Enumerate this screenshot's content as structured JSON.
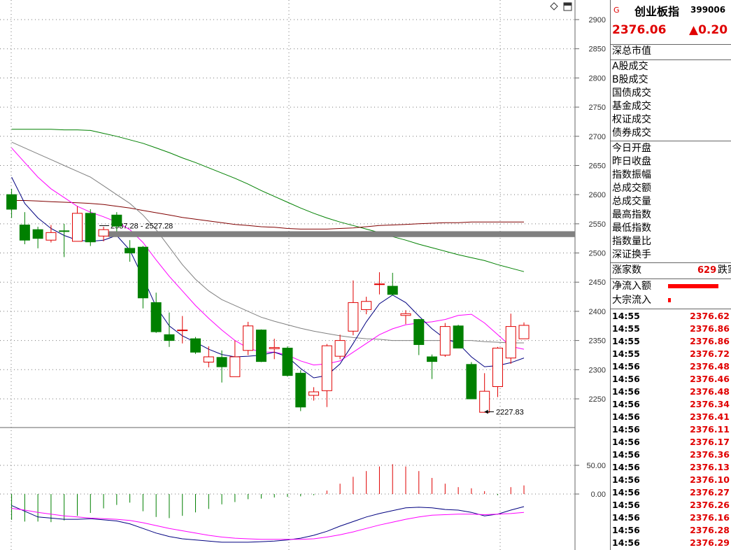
{
  "header": {
    "market_flag": "G",
    "index_name": "创业板指",
    "index_code": "399006",
    "price": "2376.06",
    "change": "▲0.20"
  },
  "panel": {
    "labels_group1": [
      "深总市值"
    ],
    "labels_group2": [
      "A股成交",
      "B股成交",
      "国债成交",
      "基金成交",
      "权证成交",
      "债券成交"
    ],
    "labels_group3": [
      "今日开盘",
      "昨日收盘",
      "指数振幅",
      "总成交额",
      "总成交量",
      "最高指数",
      "最低指数",
      "指数量比",
      "深证换手"
    ],
    "up_count_label": "涨家数",
    "up_count_value": "629",
    "down_count_label": "跌家",
    "net_inflow_label": "净流入额",
    "block_inflow_label": "大宗流入",
    "net_inflow_fraction": 0.9,
    "block_inflow_fraction": 0.05
  },
  "ticks": [
    {
      "time": "14:55",
      "price": "2376.62"
    },
    {
      "time": "14:55",
      "price": "2376.86"
    },
    {
      "time": "14:55",
      "price": "2376.86"
    },
    {
      "time": "14:55",
      "price": "2376.72"
    },
    {
      "time": "14:56",
      "price": "2376.48"
    },
    {
      "time": "14:56",
      "price": "2376.46"
    },
    {
      "time": "14:56",
      "price": "2376.48"
    },
    {
      "time": "14:56",
      "price": "2376.34"
    },
    {
      "time": "14:56",
      "price": "2376.41"
    },
    {
      "time": "14:56",
      "price": "2376.11"
    },
    {
      "time": "14:56",
      "price": "2376.17"
    },
    {
      "time": "14:56",
      "price": "2376.36"
    },
    {
      "time": "14:56",
      "price": "2376.13"
    },
    {
      "time": "14:56",
      "price": "2376.10"
    },
    {
      "time": "14:56",
      "price": "2376.27"
    },
    {
      "time": "14:56",
      "price": "2376.26"
    },
    {
      "time": "14:56",
      "price": "2376.16"
    },
    {
      "time": "14:56",
      "price": "2376.28"
    },
    {
      "time": "14:56",
      "price": "2376.29"
    }
  ],
  "colors": {
    "up": "#e00000",
    "down": "#008000",
    "ma_short": "#000080",
    "ma_mid": "#ff00ff",
    "ma_long": "#808080",
    "ma_longer": "#800000",
    "ma_longest": "#008000",
    "band": "#808080"
  },
  "chart_data": {
    "type": "candlestick",
    "price_axis": {
      "min": 2200,
      "max": 2910,
      "ticks": [
        2250,
        2300,
        2350,
        2400,
        2450,
        2500,
        2550,
        2600,
        2650,
        2700,
        2750,
        2800,
        2850,
        2900
      ]
    },
    "macd_axis": {
      "ticks": [
        "50.00",
        "0.00"
      ]
    },
    "candles": [
      {
        "o": 2600,
        "c": 2575,
        "h": 2610,
        "l": 2560
      },
      {
        "o": 2548,
        "c": 2522,
        "h": 2570,
        "l": 2515
      },
      {
        "o": 2540,
        "c": 2525,
        "h": 2545,
        "l": 2508
      },
      {
        "o": 2522,
        "c": 2535,
        "h": 2548,
        "l": 2518
      },
      {
        "o": 2538,
        "c": 2537,
        "h": 2550,
        "l": 2493
      },
      {
        "o": 2520,
        "c": 2568,
        "h": 2580,
        "l": 2520
      },
      {
        "o": 2568,
        "c": 2519,
        "h": 2575,
        "l": 2512
      },
      {
        "o": 2529,
        "c": 2540,
        "h": 2545,
        "l": 2520
      },
      {
        "o": 2565,
        "c": 2546,
        "h": 2570,
        "l": 2537
      },
      {
        "o": 2508,
        "c": 2500,
        "h": 2522,
        "l": 2485
      },
      {
        "o": 2510,
        "c": 2423,
        "h": 2512,
        "l": 2405
      },
      {
        "o": 2415,
        "c": 2365,
        "h": 2432,
        "l": 2363
      },
      {
        "o": 2360,
        "c": 2350,
        "h": 2398,
        "l": 2339
      },
      {
        "o": 2368,
        "c": 2368,
        "h": 2392,
        "l": 2345
      },
      {
        "o": 2353,
        "c": 2330,
        "h": 2356,
        "l": 2327
      },
      {
        "o": 2313,
        "c": 2322,
        "h": 2340,
        "l": 2304
      },
      {
        "o": 2321,
        "c": 2305,
        "h": 2333,
        "l": 2278
      },
      {
        "o": 2288,
        "c": 2322,
        "h": 2350,
        "l": 2288
      },
      {
        "o": 2333,
        "c": 2375,
        "h": 2382,
        "l": 2325
      },
      {
        "o": 2368,
        "c": 2314,
        "h": 2369,
        "l": 2313
      },
      {
        "o": 2336,
        "c": 2338,
        "h": 2353,
        "l": 2318
      },
      {
        "o": 2337,
        "c": 2290,
        "h": 2340,
        "l": 2288
      },
      {
        "o": 2294,
        "c": 2236,
        "h": 2299,
        "l": 2229
      },
      {
        "o": 2256,
        "c": 2262,
        "h": 2270,
        "l": 2247
      },
      {
        "o": 2264,
        "c": 2341,
        "h": 2344,
        "l": 2236
      },
      {
        "o": 2323,
        "c": 2350,
        "h": 2360,
        "l": 2318
      },
      {
        "o": 2366,
        "c": 2415,
        "h": 2453,
        "l": 2359
      },
      {
        "o": 2403,
        "c": 2417,
        "h": 2425,
        "l": 2395
      },
      {
        "o": 2446,
        "c": 2447,
        "h": 2467,
        "l": 2429
      },
      {
        "o": 2443,
        "c": 2429,
        "h": 2466,
        "l": 2427
      },
      {
        "o": 2393,
        "c": 2396,
        "h": 2402,
        "l": 2378
      },
      {
        "o": 2386,
        "c": 2343,
        "h": 2387,
        "l": 2325
      },
      {
        "o": 2322,
        "c": 2314,
        "h": 2326,
        "l": 2284
      },
      {
        "o": 2325,
        "c": 2374,
        "h": 2380,
        "l": 2322
      },
      {
        "o": 2375,
        "c": 2337,
        "h": 2377,
        "l": 2337
      },
      {
        "o": 2309,
        "c": 2250,
        "h": 2313,
        "l": 2250
      },
      {
        "o": 2227,
        "c": 2263,
        "h": 2294,
        "l": 2227
      },
      {
        "o": 2271,
        "c": 2337,
        "h": 2339,
        "l": 2253
      },
      {
        "o": 2320,
        "c": 2374,
        "h": 2396,
        "l": 2310
      },
      {
        "o": 2353,
        "c": 2376,
        "h": 2381,
        "l": 2353
      }
    ],
    "ma_short": [
      2630,
      2585,
      2560,
      2542,
      2530,
      2522,
      2520,
      2522,
      2530,
      2505,
      2458,
      2408,
      2375,
      2358,
      2347,
      2335,
      2326,
      2322,
      2323,
      2325,
      2330,
      2322,
      2302,
      2286,
      2290,
      2310,
      2345,
      2382,
      2413,
      2428,
      2415,
      2392,
      2370,
      2353,
      2345,
      2322,
      2305,
      2307,
      2312,
      2320
    ],
    "ma_mid": [
      2680,
      2655,
      2630,
      2610,
      2595,
      2580,
      2570,
      2562,
      2553,
      2540,
      2518,
      2488,
      2460,
      2435,
      2410,
      2388,
      2368,
      2350,
      2337,
      2330,
      2330,
      2325,
      2315,
      2308,
      2310,
      2315,
      2330,
      2345,
      2360,
      2370,
      2377,
      2380,
      2382,
      2386,
      2393,
      2395,
      2380,
      2360,
      2340,
      2335
    ],
    "ma_long": [
      2690,
      2680,
      2670,
      2660,
      2650,
      2640,
      2630,
      2615,
      2600,
      2585,
      2565,
      2540,
      2510,
      2480,
      2455,
      2435,
      2420,
      2410,
      2400,
      2390,
      2383,
      2377,
      2371,
      2366,
      2362,
      2358,
      2355,
      2353,
      2352,
      2350,
      2350,
      2350,
      2350,
      2350,
      2350,
      2350,
      2348,
      2347,
      2346,
      2346
    ],
    "ma_longer": [
      2590,
      2590,
      2589,
      2588,
      2587,
      2586,
      2585,
      2583,
      2580,
      2577,
      2573,
      2569,
      2565,
      2561,
      2558,
      2555,
      2552,
      2549,
      2547,
      2545,
      2544,
      2542,
      2541,
      2541,
      2541,
      2542,
      2543,
      2545,
      2547,
      2548,
      2549,
      2550,
      2551,
      2552,
      2552,
      2553,
      2553,
      2553,
      2553,
      2553
    ],
    "ma_longest": [
      2712,
      2712,
      2712,
      2712,
      2711,
      2711,
      2710,
      2705,
      2700,
      2694,
      2688,
      2680,
      2672,
      2663,
      2655,
      2646,
      2637,
      2628,
      2618,
      2607,
      2597,
      2587,
      2577,
      2568,
      2560,
      2553,
      2547,
      2541,
      2535,
      2528,
      2522,
      2515,
      2509,
      2503,
      2497,
      2492,
      2487,
      2480,
      2474,
      2468
    ],
    "band": {
      "low": 2527.28,
      "high": 2537.28,
      "label": "2537.28 - 2527.28"
    },
    "low_marker": {
      "value": "2227.83",
      "price": 2227.83,
      "index": 36
    },
    "macd_hist": [
      -45,
      -48,
      -48,
      -49,
      -46,
      -38,
      -33,
      -25,
      -19,
      -15,
      -30,
      -40,
      -42,
      -38,
      -32,
      -26,
      -18,
      -14,
      -9,
      -8,
      -6,
      -5,
      -4,
      -2,
      6,
      18,
      30,
      40,
      48,
      52,
      48,
      40,
      28,
      18,
      12,
      10,
      5,
      -2,
      12,
      15
    ],
    "macd_dif": [
      -20,
      -30,
      -40,
      -42,
      -44,
      -44,
      -43,
      -45,
      -47,
      -52,
      -60,
      -68,
      -74,
      -78,
      -80,
      -82,
      -84,
      -84,
      -84,
      -83,
      -82,
      -80,
      -77,
      -72,
      -65,
      -56,
      -48,
      -40,
      -34,
      -29,
      -24,
      -23,
      -24,
      -27,
      -28,
      -32,
      -38,
      -35,
      -28,
      -22
    ],
    "macd_dea": [
      -25,
      -28,
      -32,
      -35,
      -38,
      -40,
      -42,
      -43,
      -44,
      -46,
      -50,
      -55,
      -60,
      -64,
      -68,
      -72,
      -75,
      -77,
      -78,
      -79,
      -79,
      -79,
      -79,
      -78,
      -75,
      -71,
      -66,
      -60,
      -54,
      -49,
      -44,
      -40,
      -37,
      -36,
      -35,
      -35,
      -36,
      -35,
      -34,
      -32
    ]
  }
}
